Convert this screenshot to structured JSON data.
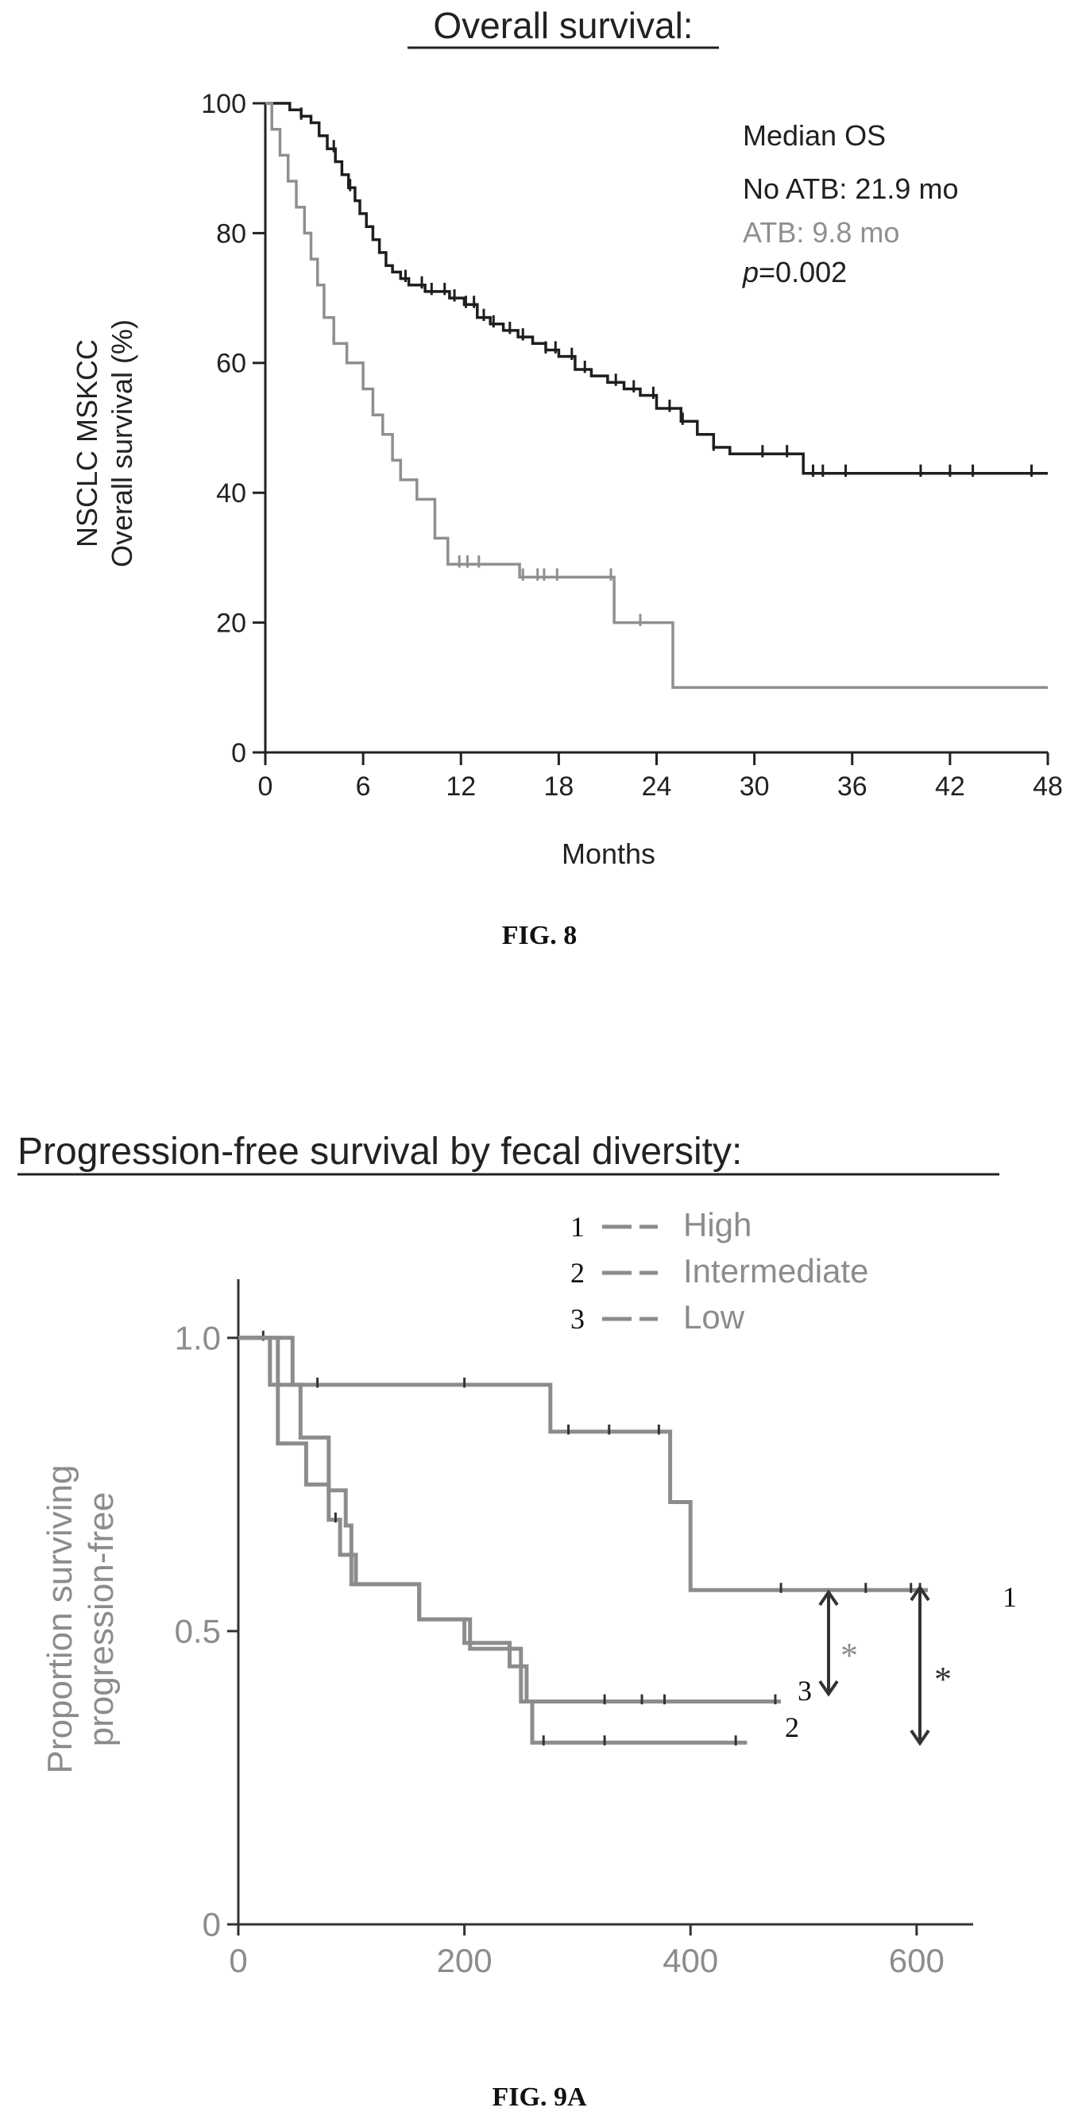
{
  "figures": [
    {
      "caption": "FIG. 8"
    },
    {
      "caption": "FIG. 9A"
    }
  ],
  "chart_data": [
    {
      "type": "line",
      "step": true,
      "title": "Overall survival:",
      "xlabel": "Months",
      "ylabel": "NSCLC MSKCC Overall survival (%)",
      "ylabel_lines": [
        "NSCLC MSKCC",
        "Overall survival (%)"
      ],
      "xlim": [
        0,
        48
      ],
      "ylim": [
        0,
        100
      ],
      "xticks": [
        0,
        6,
        12,
        18,
        24,
        30,
        36,
        42,
        48
      ],
      "yticks": [
        0,
        20,
        40,
        60,
        80,
        100
      ],
      "grid": false,
      "annotations": [
        {
          "text": "Median OS",
          "color": "#202020"
        },
        {
          "text": "No ATB: 21.9 mo",
          "color": "#202020"
        },
        {
          "text": "ATB: 9.8 mo",
          "color": "#8f8f8f"
        },
        {
          "text_italic": "p",
          "text": "=0.002",
          "color": "#202020"
        }
      ],
      "series": [
        {
          "name": "No ATB",
          "color": "#1e1e1e",
          "x": [
            0,
            1.5,
            2.2,
            2.8,
            3.3,
            3.8,
            4.3,
            4.7,
            5.1,
            5.5,
            5.8,
            6.2,
            6.6,
            7.0,
            7.4,
            7.8,
            8.3,
            8.8,
            9.3,
            9.8,
            10.5,
            11.3,
            12.2,
            13.0,
            13.8,
            14.6,
            15.5,
            16.4,
            17.2,
            18.0,
            19.0,
            20.0,
            21.0,
            22.0,
            23.0,
            24.0,
            25.5,
            26.5,
            27.5,
            28.5,
            33.0,
            48.0
          ],
          "y": [
            100,
            99,
            98,
            97,
            95,
            93,
            91,
            89,
            87,
            85,
            83,
            81,
            79,
            77,
            75,
            74,
            73,
            72,
            72,
            71,
            71,
            70,
            69,
            67,
            66,
            65,
            64,
            63,
            62,
            61,
            59,
            58,
            57,
            56,
            55,
            53,
            51,
            49,
            47,
            46,
            43,
            43
          ],
          "censored_x": [
            2.2,
            4.2,
            5.2,
            8.6,
            9.6,
            10.2,
            11.0,
            11.6,
            12.3,
            12.8,
            13.4,
            14.0,
            15.0,
            15.8,
            17.2,
            17.8,
            18.8,
            19.6,
            21.5,
            22.6,
            23.8,
            24.8,
            25.6,
            27.5,
            30.5,
            32.0,
            33.6,
            34.2,
            35.6,
            40.2,
            42.0,
            43.4,
            47.0
          ]
        },
        {
          "name": "ATB",
          "color": "#8f8f8f",
          "x": [
            0,
            0.4,
            0.9,
            1.4,
            1.9,
            2.4,
            2.8,
            3.2,
            3.6,
            4.2,
            5.0,
            6.0,
            6.6,
            7.2,
            7.8,
            8.3,
            9.3,
            10.4,
            11.2,
            15.6,
            21.4,
            25.0,
            48.0
          ],
          "y": [
            100,
            96,
            92,
            88,
            84,
            80,
            76,
            72,
            67,
            63,
            60,
            56,
            52,
            49,
            45,
            42,
            39,
            33,
            29,
            27,
            20,
            10,
            10
          ],
          "censored_x": [
            11.9,
            12.4,
            13.1,
            15.8,
            16.7,
            17.1,
            17.9,
            21.2,
            23.0
          ]
        }
      ]
    },
    {
      "type": "line",
      "step": true,
      "title": "Progression-free survival by fecal diversity:",
      "xlabel": "",
      "ylabel": "Proportion surviving progression-free",
      "ylabel_lines": [
        "Proportion surviving",
        "progression-free"
      ],
      "xlim": [
        0,
        650
      ],
      "ylim": [
        0,
        1.1
      ],
      "xticks": [
        0,
        200,
        400,
        600
      ],
      "yticks": [
        0,
        0.5,
        1.0
      ],
      "ytick_labels": [
        "0",
        "0.5",
        "1.0"
      ],
      "grid": false,
      "legend": {
        "position": "top-right",
        "entries": [
          {
            "marker": "1",
            "label": "High"
          },
          {
            "marker": "2",
            "label": "Intermediate"
          },
          {
            "marker": "3",
            "label": "Low"
          }
        ]
      },
      "line_end_labels": [
        "1",
        "3",
        "2"
      ],
      "significance": [
        "*",
        "*"
      ],
      "series": [
        {
          "name": "High",
          "color": "#8c8c8c",
          "x": [
            0,
            48,
            276,
            382,
            400,
            610
          ],
          "y": [
            1.0,
            0.92,
            0.84,
            0.72,
            0.57,
            0.57
          ],
          "censored_x": [
            22,
            70,
            200,
            292,
            328,
            372,
            480,
            555,
            595,
            603
          ]
        },
        {
          "name": "Intermediate",
          "color": "#8c8c8c",
          "x": [
            0,
            35,
            55,
            80,
            95,
            100,
            160,
            205,
            250,
            260,
            450
          ],
          "y": [
            1.0,
            0.92,
            0.83,
            0.74,
            0.68,
            0.58,
            0.52,
            0.47,
            0.38,
            0.31,
            0.31
          ],
          "censored_x": [
            270,
            324,
            440
          ]
        },
        {
          "name": "Low",
          "color": "#8c8c8c",
          "x": [
            0,
            28,
            35,
            60,
            80,
            90,
            104,
            160,
            200,
            240,
            255,
            480
          ],
          "y": [
            1.0,
            0.92,
            0.82,
            0.75,
            0.69,
            0.63,
            0.58,
            0.52,
            0.48,
            0.44,
            0.38,
            0.38
          ],
          "censored_x": [
            86,
            324,
            357,
            377,
            475
          ]
        }
      ]
    }
  ]
}
